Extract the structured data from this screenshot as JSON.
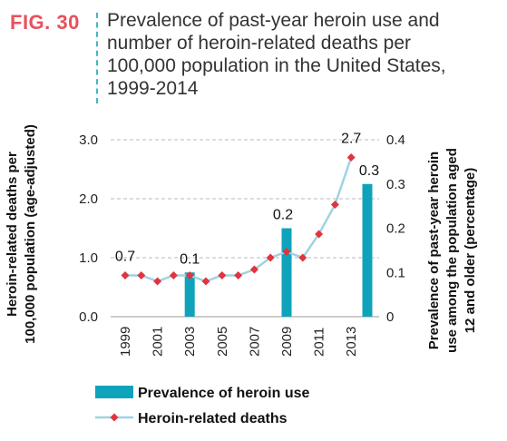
{
  "figure": {
    "label": "FIG. 30",
    "title_lines": [
      "Prevalence of past-year heroin use and",
      "number of heroin-related deaths per",
      "100,000 population in the United States,",
      "1999-2014"
    ]
  },
  "chart_data": {
    "type": "bar+line",
    "x_tick_labels": [
      "1999",
      "2001",
      "2003",
      "2005",
      "2007",
      "2009",
      "2011",
      "2013"
    ],
    "y_left": {
      "label_lines": [
        "Heroin-related deaths per",
        "100,000 population (age-adjusted)"
      ],
      "ticks": [
        "0.0",
        "1.0",
        "2.0",
        "3.0"
      ],
      "lim": [
        0,
        3
      ]
    },
    "y_right": {
      "label_lines": [
        "Prevalence of past-year heroin",
        "use among the population aged",
        "12 and older (percentage)"
      ],
      "ticks": [
        "0",
        "0.1",
        "0.2",
        "0.3",
        "0.4"
      ],
      "lim": [
        0,
        0.4
      ]
    },
    "bars": {
      "name": "Prevalence of heroin use",
      "color": "#0fa3bb",
      "x": [
        2003,
        2009,
        2014
      ],
      "values": [
        0.1,
        0.2,
        0.3
      ],
      "labels": [
        "0.1",
        "0.2",
        "0.3"
      ]
    },
    "line": {
      "name": "Heroin-related deaths",
      "line_color": "#9fd3e1",
      "marker_color": "#e0343e",
      "x": [
        1999,
        2000,
        2001,
        2002,
        2003,
        2004,
        2005,
        2006,
        2007,
        2008,
        2009,
        2010,
        2011,
        2012,
        2013
      ],
      "values": [
        0.7,
        0.7,
        0.6,
        0.7,
        0.7,
        0.6,
        0.7,
        0.7,
        0.8,
        1.0,
        1.1,
        1.0,
        1.4,
        1.9,
        2.7
      ],
      "labels": [
        {
          "x": 1999,
          "text": "0.7"
        },
        {
          "x": 2013,
          "text": "2.7"
        }
      ]
    },
    "grid": "dashed horizontal",
    "legend_position": "bottom"
  }
}
